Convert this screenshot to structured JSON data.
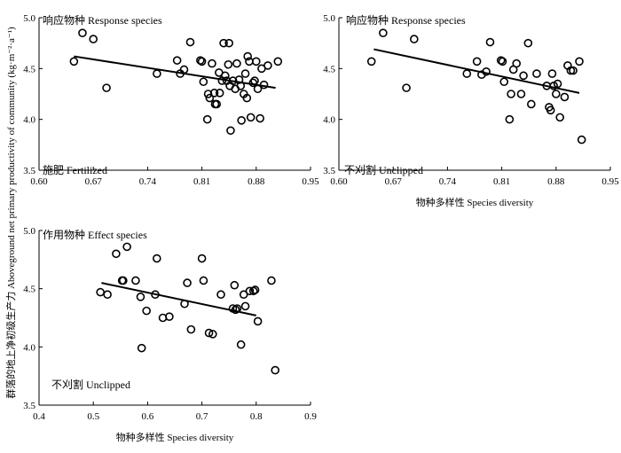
{
  "y_axis_title": "群落的地上净初级生产力 Aboveground net primary productivity of community (kg·m⁻²·a⁻¹)",
  "chart_data": [
    {
      "type": "scatter",
      "panel_label": "响应物种 Response species",
      "treatment_label": "施肥 Fertilized",
      "xlabel": "",
      "xlim": [
        0.6,
        0.95
      ],
      "ylim": [
        3.5,
        5.0
      ],
      "x_ticks": [
        "0.60",
        "0.67",
        "0.74",
        "0.81",
        "0.88",
        "0.95"
      ],
      "y_ticks": [
        "3.5",
        "4.0",
        "4.5",
        "5.0"
      ],
      "trend_line": {
        "x": [
          0.645,
          0.905
        ],
        "y": [
          4.62,
          4.31
        ]
      },
      "points": [
        [
          0.645,
          4.57
        ],
        [
          0.656,
          4.85
        ],
        [
          0.67,
          4.79
        ],
        [
          0.687,
          4.31
        ],
        [
          0.752,
          4.45
        ],
        [
          0.778,
          4.58
        ],
        [
          0.782,
          4.45
        ],
        [
          0.787,
          4.49
        ],
        [
          0.795,
          4.76
        ],
        [
          0.808,
          4.58
        ],
        [
          0.81,
          4.57
        ],
        [
          0.812,
          4.37
        ],
        [
          0.817,
          4.0
        ],
        [
          0.818,
          4.25
        ],
        [
          0.82,
          4.21
        ],
        [
          0.823,
          4.55
        ],
        [
          0.826,
          4.26
        ],
        [
          0.827,
          4.15
        ],
        [
          0.829,
          4.15
        ],
        [
          0.832,
          4.46
        ],
        [
          0.833,
          4.26
        ],
        [
          0.836,
          4.38
        ],
        [
          0.838,
          4.75
        ],
        [
          0.84,
          4.43
        ],
        [
          0.842,
          4.38
        ],
        [
          0.844,
          4.54
        ],
        [
          0.845,
          4.75
        ],
        [
          0.846,
          4.33
        ],
        [
          0.847,
          3.89
        ],
        [
          0.85,
          4.38
        ],
        [
          0.853,
          4.3
        ],
        [
          0.855,
          4.55
        ],
        [
          0.858,
          4.39
        ],
        [
          0.86,
          4.33
        ],
        [
          0.861,
          3.99
        ],
        [
          0.864,
          4.25
        ],
        [
          0.866,
          4.45
        ],
        [
          0.868,
          4.21
        ],
        [
          0.869,
          4.62
        ],
        [
          0.871,
          4.57
        ],
        [
          0.873,
          4.02
        ],
        [
          0.876,
          4.36
        ],
        [
          0.878,
          4.38
        ],
        [
          0.88,
          4.57
        ],
        [
          0.882,
          4.3
        ],
        [
          0.885,
          4.01
        ],
        [
          0.887,
          4.5
        ],
        [
          0.89,
          4.34
        ],
        [
          0.895,
          4.53
        ],
        [
          0.908,
          4.57
        ]
      ]
    },
    {
      "type": "scatter",
      "panel_label": "响应物种 Response species",
      "treatment_label": "不刈割 Unclipped",
      "xlabel": "物种多样性 Species diversity",
      "xlim": [
        0.6,
        0.95
      ],
      "ylim": [
        3.5,
        5.0
      ],
      "x_ticks": [
        "0.60",
        "0.67",
        "0.74",
        "0.81",
        "0.88",
        "0.95"
      ],
      "y_ticks": [
        "3.5",
        "4.0",
        "4.5",
        "5.0"
      ],
      "trend_line": {
        "x": [
          0.645,
          0.91
        ],
        "y": [
          4.69,
          4.26
        ]
      },
      "points": [
        [
          0.642,
          4.57
        ],
        [
          0.657,
          4.85
        ],
        [
          0.697,
          4.79
        ],
        [
          0.687,
          4.31
        ],
        [
          0.765,
          4.45
        ],
        [
          0.778,
          4.57
        ],
        [
          0.784,
          4.44
        ],
        [
          0.79,
          4.47
        ],
        [
          0.795,
          4.76
        ],
        [
          0.809,
          4.58
        ],
        [
          0.811,
          4.57
        ],
        [
          0.813,
          4.37
        ],
        [
          0.82,
          4.0
        ],
        [
          0.822,
          4.25
        ],
        [
          0.825,
          4.49
        ],
        [
          0.829,
          4.55
        ],
        [
          0.835,
          4.25
        ],
        [
          0.838,
          4.43
        ],
        [
          0.844,
          4.75
        ],
        [
          0.848,
          4.15
        ],
        [
          0.855,
          4.45
        ],
        [
          0.868,
          4.33
        ],
        [
          0.871,
          4.12
        ],
        [
          0.873,
          4.09
        ],
        [
          0.875,
          4.45
        ],
        [
          0.877,
          4.33
        ],
        [
          0.88,
          4.25
        ],
        [
          0.882,
          4.35
        ],
        [
          0.885,
          4.02
        ],
        [
          0.891,
          4.22
        ],
        [
          0.895,
          4.53
        ],
        [
          0.899,
          4.48
        ],
        [
          0.902,
          4.48
        ],
        [
          0.91,
          4.57
        ],
        [
          0.913,
          3.8
        ]
      ]
    },
    {
      "type": "scatter",
      "panel_label": "作用物种 Effect species",
      "treatment_label": "不刈割 Unclipped",
      "xlabel": "物种多样性 Species diversity",
      "xlim": [
        0.4,
        0.9
      ],
      "ylim": [
        3.5,
        5.0
      ],
      "x_ticks": [
        "0.4",
        "0.5",
        "0.6",
        "0.7",
        "0.8",
        "0.9"
      ],
      "y_ticks": [
        "3.5",
        "4.0",
        "4.5",
        "5.0"
      ],
      "trend_line": {
        "x": [
          0.515,
          0.8
        ],
        "y": [
          4.55,
          4.27
        ]
      },
      "points": [
        [
          0.513,
          4.47
        ],
        [
          0.526,
          4.45
        ],
        [
          0.542,
          4.8
        ],
        [
          0.553,
          4.57
        ],
        [
          0.555,
          4.57
        ],
        [
          0.562,
          4.86
        ],
        [
          0.578,
          4.57
        ],
        [
          0.587,
          4.43
        ],
        [
          0.589,
          3.99
        ],
        [
          0.598,
          4.31
        ],
        [
          0.614,
          4.45
        ],
        [
          0.617,
          4.76
        ],
        [
          0.628,
          4.25
        ],
        [
          0.64,
          4.26
        ],
        [
          0.668,
          4.37
        ],
        [
          0.673,
          4.55
        ],
        [
          0.68,
          4.15
        ],
        [
          0.7,
          4.76
        ],
        [
          0.703,
          4.57
        ],
        [
          0.713,
          4.12
        ],
        [
          0.72,
          4.11
        ],
        [
          0.735,
          4.45
        ],
        [
          0.757,
          4.33
        ],
        [
          0.76,
          4.53
        ],
        [
          0.762,
          4.32
        ],
        [
          0.765,
          4.33
        ],
        [
          0.772,
          4.02
        ],
        [
          0.777,
          4.45
        ],
        [
          0.78,
          4.35
        ],
        [
          0.788,
          4.48
        ],
        [
          0.795,
          4.48
        ],
        [
          0.798,
          4.49
        ],
        [
          0.803,
          4.22
        ],
        [
          0.828,
          4.57
        ],
        [
          0.835,
          3.8
        ]
      ]
    }
  ]
}
